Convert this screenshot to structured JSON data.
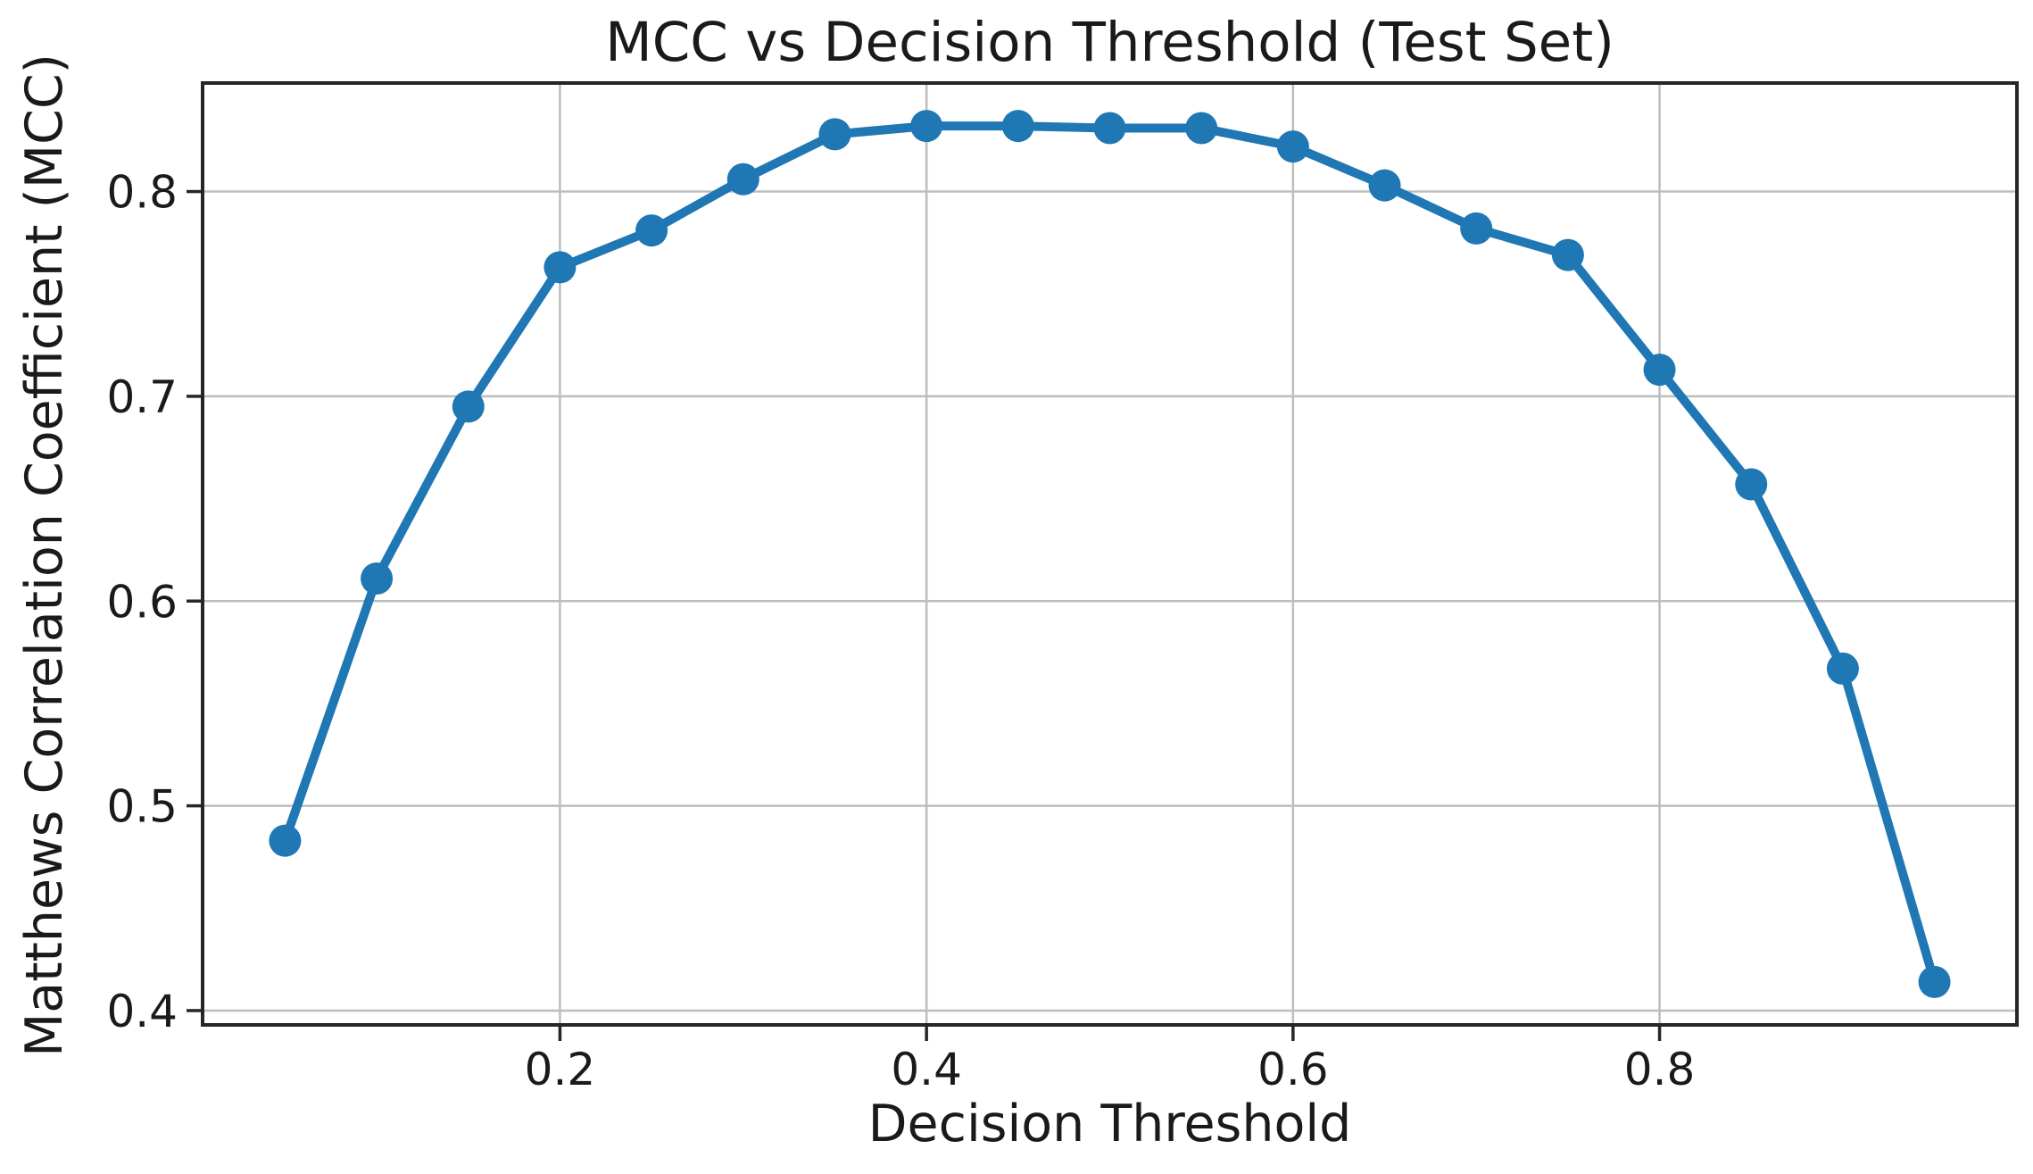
{
  "figure": {
    "background_color": "#ffffff"
  },
  "chart_data": {
    "type": "line",
    "title": "MCC vs Decision Threshold (Test Set)",
    "xlabel": "Decision Threshold",
    "ylabel": "Matthews Correlation Coefficient (MCC)",
    "x": [
      0.05,
      0.1,
      0.15,
      0.2,
      0.25,
      0.3,
      0.35,
      0.4,
      0.45,
      0.5,
      0.55,
      0.6,
      0.65,
      0.7,
      0.75,
      0.8,
      0.85,
      0.9,
      0.95
    ],
    "y": [
      0.483,
      0.611,
      0.695,
      0.763,
      0.781,
      0.806,
      0.828,
      0.832,
      0.832,
      0.831,
      0.831,
      0.822,
      0.803,
      0.782,
      0.769,
      0.713,
      0.657,
      0.567,
      0.414
    ],
    "xticks": [
      0.2,
      0.4,
      0.6,
      0.8
    ],
    "yticks": [
      0.4,
      0.5,
      0.6,
      0.7,
      0.8
    ],
    "xlim": [
      0.005,
      0.995
    ],
    "ylim": [
      0.393,
      0.853
    ],
    "grid": true,
    "legend": false,
    "marker": "circle",
    "line_color": "#1f77b4"
  },
  "style": {
    "grid_color": "#bdbdbd",
    "spine_color": "#262626",
    "tick_color": "#262626",
    "text_color": "#1a1a1a"
  }
}
